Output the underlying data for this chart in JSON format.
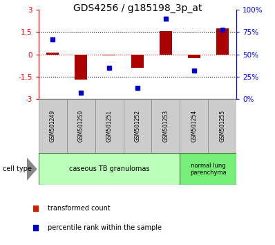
{
  "title": "GDS4256 / g185198_3p_at",
  "samples": [
    "GSM501249",
    "GSM501250",
    "GSM501251",
    "GSM501252",
    "GSM501253",
    "GSM501254",
    "GSM501255"
  ],
  "transformed_counts": [
    0.15,
    -1.7,
    -0.05,
    -0.9,
    1.55,
    -0.25,
    1.75
  ],
  "percentile_ranks": [
    67,
    7,
    35,
    13,
    90,
    32,
    78
  ],
  "ylim_left": [
    -3,
    3
  ],
  "ylim_right": [
    0,
    100
  ],
  "yticks_left": [
    -3,
    -1.5,
    0,
    1.5,
    3
  ],
  "yticks_right": [
    0,
    25,
    50,
    75,
    100
  ],
  "ytick_labels_left": [
    "-3",
    "-1.5",
    "0",
    "1.5",
    "3"
  ],
  "ytick_labels_right": [
    "0%",
    "25%",
    "50%",
    "75%",
    "100%"
  ],
  "bar_color": "#aa0000",
  "dot_color": "#0000cc",
  "cell_groups": [
    {
      "label": "caseous TB granulomas",
      "n_samples": 5,
      "color": "#bbffbb"
    },
    {
      "label": "normal lung\nparenchyma",
      "n_samples": 2,
      "color": "#77ee77"
    }
  ],
  "cell_type_label": "cell type",
  "legend_items": [
    {
      "color": "#cc2200",
      "label": "transformed count"
    },
    {
      "color": "#0000cc",
      "label": "percentile rank within the sample"
    }
  ],
  "bar_width": 0.45,
  "title_fontsize": 10,
  "sample_label_fontsize": 5.5,
  "tick_fontsize": 7.5,
  "celltype_fontsize": 7,
  "legend_fontsize": 7
}
